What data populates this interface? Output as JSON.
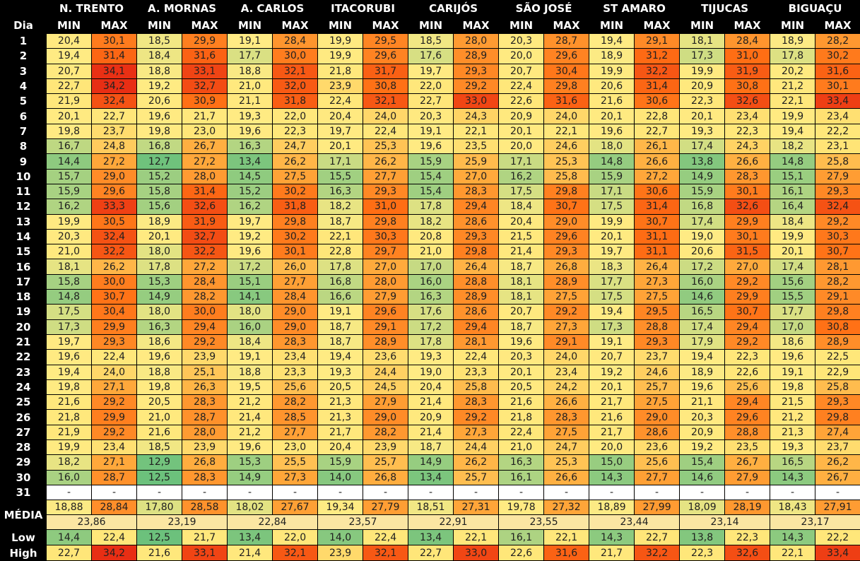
{
  "header": {
    "dia_label": "Dia",
    "min_label": "MIN",
    "max_label": "MAX"
  },
  "stations": [
    "N. TRENTO",
    "A. MORNAS",
    "A. CARLOS",
    "ITACORUBI",
    "CARIJÓS",
    "SÃO JOSÉ",
    "ST AMARO",
    "TIJUCAS",
    "BIGUAÇU"
  ],
  "days": [
    "1",
    "2",
    "3",
    "4",
    "5",
    "6",
    "7",
    "8",
    "9",
    "10",
    "11",
    "12",
    "13",
    "14",
    "15",
    "16",
    "17",
    "18",
    "19",
    "20",
    "21",
    "22",
    "23",
    "24",
    "25",
    "26",
    "27",
    "28",
    "29",
    "30",
    "31"
  ],
  "missing_mark": "-",
  "summary_labels": {
    "media": "MÉDIA",
    "low": "Low",
    "high": "High"
  },
  "chart_data": {
    "type": "table",
    "title": "",
    "columns": [
      "N. TRENTO",
      "A. MORNAS",
      "A. CARLOS",
      "ITACORUBI",
      "CARIJÓS",
      "SÃO JOSÉ",
      "ST AMARO",
      "TIJUCAS",
      "BIGUAÇU"
    ],
    "subcolumns": [
      "MIN",
      "MAX"
    ],
    "rows": [
      [
        "20,4",
        "30,1",
        "18,5",
        "29,9",
        "19,1",
        "28,4",
        "19,9",
        "29,5",
        "18,5",
        "28,0",
        "20,3",
        "28,7",
        "19,4",
        "29,1",
        "18,1",
        "28,4",
        "18,9",
        "28,2"
      ],
      [
        "19,4",
        "31,4",
        "18,4",
        "31,6",
        "17,7",
        "30,0",
        "19,9",
        "29,6",
        "17,6",
        "28,9",
        "20,0",
        "29,6",
        "18,9",
        "31,2",
        "17,3",
        "31,0",
        "17,8",
        "30,2"
      ],
      [
        "20,7",
        "34,1",
        "18,8",
        "33,1",
        "18,8",
        "32,1",
        "21,8",
        "31,7",
        "19,7",
        "29,3",
        "20,7",
        "30,4",
        "19,9",
        "32,2",
        "19,9",
        "31,9",
        "20,2",
        "31,6"
      ],
      [
        "22,7",
        "34,2",
        "19,2",
        "32,7",
        "21,0",
        "32,0",
        "23,9",
        "30,8",
        "22,0",
        "29,2",
        "22,4",
        "29,8",
        "20,6",
        "31,4",
        "20,9",
        "30,8",
        "21,2",
        "30,1"
      ],
      [
        "21,9",
        "32,4",
        "20,6",
        "30,9",
        "21,1",
        "31,8",
        "22,4",
        "32,1",
        "22,7",
        "33,0",
        "22,6",
        "31,6",
        "21,6",
        "30,6",
        "22,3",
        "32,6",
        "22,1",
        "33,4"
      ],
      [
        "20,1",
        "22,7",
        "19,6",
        "21,7",
        "19,3",
        "22,0",
        "20,4",
        "24,0",
        "20,3",
        "24,3",
        "20,9",
        "24,0",
        "20,1",
        "22,8",
        "20,1",
        "23,4",
        "19,9",
        "23,4"
      ],
      [
        "19,8",
        "23,7",
        "19,8",
        "23,0",
        "19,6",
        "22,3",
        "19,7",
        "22,4",
        "19,1",
        "22,1",
        "20,1",
        "22,1",
        "19,6",
        "22,7",
        "19,3",
        "22,3",
        "19,4",
        "22,2"
      ],
      [
        "16,7",
        "24,8",
        "16,8",
        "26,7",
        "16,3",
        "24,7",
        "20,1",
        "25,3",
        "19,6",
        "23,5",
        "20,0",
        "24,6",
        "18,0",
        "26,1",
        "17,4",
        "24,3",
        "18,2",
        "23,1"
      ],
      [
        "14,4",
        "27,2",
        "12,7",
        "27,2",
        "13,4",
        "26,2",
        "17,1",
        "26,2",
        "15,9",
        "25,9",
        "17,1",
        "25,3",
        "14,8",
        "26,6",
        "13,8",
        "26,6",
        "14,8",
        "25,8"
      ],
      [
        "15,7",
        "29,0",
        "15,2",
        "28,0",
        "14,5",
        "27,5",
        "15,5",
        "27,7",
        "15,4",
        "27,0",
        "16,2",
        "25,8",
        "15,9",
        "27,2",
        "14,9",
        "28,3",
        "15,1",
        "27,9"
      ],
      [
        "15,9",
        "29,6",
        "15,8",
        "31,4",
        "15,2",
        "30,2",
        "16,3",
        "29,3",
        "15,4",
        "28,3",
        "17,5",
        "29,8",
        "17,1",
        "30,6",
        "15,9",
        "30,1",
        "16,1",
        "29,3"
      ],
      [
        "16,2",
        "33,3",
        "15,6",
        "32,6",
        "16,2",
        "31,8",
        "18,2",
        "31,0",
        "17,8",
        "29,4",
        "18,4",
        "30,7",
        "17,5",
        "31,4",
        "16,8",
        "32,6",
        "16,4",
        "32,4"
      ],
      [
        "19,9",
        "30,5",
        "18,9",
        "31,9",
        "19,7",
        "29,8",
        "18,7",
        "29,8",
        "18,2",
        "28,6",
        "20,4",
        "29,0",
        "19,9",
        "30,7",
        "17,4",
        "29,9",
        "18,4",
        "29,2"
      ],
      [
        "20,3",
        "32,4",
        "20,1",
        "32,7",
        "19,2",
        "30,2",
        "22,1",
        "30,3",
        "20,8",
        "29,3",
        "21,5",
        "29,6",
        "20,1",
        "31,1",
        "19,0",
        "30,1",
        "19,9",
        "30,3"
      ],
      [
        "21,0",
        "32,2",
        "18,0",
        "32,2",
        "19,6",
        "30,1",
        "22,8",
        "29,7",
        "21,0",
        "29,8",
        "21,4",
        "29,3",
        "19,7",
        "31,1",
        "20,6",
        "31,5",
        "20,1",
        "30,7"
      ],
      [
        "18,1",
        "26,2",
        "17,8",
        "27,2",
        "17,2",
        "26,0",
        "17,8",
        "27,0",
        "17,0",
        "26,4",
        "18,7",
        "26,8",
        "18,3",
        "26,4",
        "17,2",
        "27,0",
        "17,4",
        "28,1"
      ],
      [
        "15,8",
        "30,0",
        "15,3",
        "28,4",
        "15,1",
        "27,7",
        "16,8",
        "28,0",
        "16,0",
        "28,8",
        "18,1",
        "28,9",
        "17,7",
        "27,3",
        "16,0",
        "29,2",
        "15,6",
        "28,2"
      ],
      [
        "14,8",
        "30,7",
        "14,9",
        "28,2",
        "14,1",
        "28,4",
        "16,6",
        "27,9",
        "16,3",
        "28,9",
        "18,1",
        "27,5",
        "17,5",
        "27,5",
        "14,6",
        "29,9",
        "15,5",
        "29,1"
      ],
      [
        "17,5",
        "30,4",
        "18,0",
        "30,0",
        "18,0",
        "29,0",
        "19,1",
        "29,6",
        "17,6",
        "28,6",
        "20,7",
        "29,2",
        "19,4",
        "29,5",
        "16,5",
        "30,7",
        "17,7",
        "29,8"
      ],
      [
        "17,3",
        "29,9",
        "16,3",
        "29,4",
        "16,0",
        "29,0",
        "18,7",
        "29,1",
        "17,2",
        "29,4",
        "18,7",
        "27,3",
        "17,3",
        "28,8",
        "17,4",
        "29,4",
        "17,0",
        "30,8"
      ],
      [
        "19,7",
        "29,3",
        "18,6",
        "29,2",
        "18,4",
        "28,3",
        "18,7",
        "28,9",
        "17,8",
        "28,1",
        "19,6",
        "29,1",
        "19,1",
        "29,3",
        "17,9",
        "29,2",
        "18,6",
        "28,9"
      ],
      [
        "19,6",
        "22,4",
        "19,6",
        "23,9",
        "19,1",
        "23,4",
        "19,4",
        "23,6",
        "19,3",
        "22,4",
        "20,3",
        "24,0",
        "20,7",
        "23,7",
        "19,4",
        "22,3",
        "19,6",
        "22,5"
      ],
      [
        "19,4",
        "24,0",
        "18,8",
        "25,1",
        "18,8",
        "23,3",
        "19,3",
        "24,4",
        "19,0",
        "23,3",
        "20,1",
        "23,4",
        "19,2",
        "24,6",
        "18,9",
        "22,6",
        "19,1",
        "22,9"
      ],
      [
        "19,8",
        "27,1",
        "19,8",
        "26,3",
        "19,5",
        "25,6",
        "20,5",
        "24,5",
        "20,4",
        "25,8",
        "20,5",
        "24,2",
        "20,1",
        "25,7",
        "19,6",
        "25,6",
        "19,8",
        "25,8"
      ],
      [
        "21,6",
        "29,2",
        "20,5",
        "28,3",
        "21,2",
        "28,2",
        "21,3",
        "27,9",
        "21,4",
        "28,3",
        "21,6",
        "26,6",
        "21,7",
        "27,5",
        "21,1",
        "29,4",
        "21,5",
        "29,3"
      ],
      [
        "21,8",
        "29,9",
        "21,0",
        "28,7",
        "21,4",
        "28,5",
        "21,3",
        "29,0",
        "20,9",
        "29,2",
        "21,8",
        "28,3",
        "21,6",
        "29,0",
        "20,3",
        "29,6",
        "21,2",
        "29,8"
      ],
      [
        "21,9",
        "29,2",
        "21,6",
        "28,0",
        "21,2",
        "27,7",
        "21,7",
        "28,2",
        "21,4",
        "27,3",
        "22,4",
        "27,5",
        "21,7",
        "28,6",
        "20,9",
        "28,8",
        "21,3",
        "27,4"
      ],
      [
        "19,9",
        "23,4",
        "18,5",
        "23,9",
        "19,6",
        "23,0",
        "20,4",
        "23,9",
        "18,7",
        "24,4",
        "21,0",
        "24,7",
        "20,0",
        "23,6",
        "19,2",
        "23,5",
        "19,3",
        "23,7"
      ],
      [
        "18,2",
        "27,1",
        "12,9",
        "26,8",
        "15,3",
        "25,5",
        "15,9",
        "25,7",
        "14,9",
        "26,2",
        "16,3",
        "25,3",
        "15,0",
        "25,6",
        "15,4",
        "26,7",
        "16,5",
        "26,2"
      ],
      [
        "16,0",
        "28,7",
        "12,5",
        "28,3",
        "14,9",
        "27,3",
        "14,0",
        "26,8",
        "13,4",
        "25,7",
        "16,1",
        "26,6",
        "14,3",
        "27,7",
        "14,6",
        "27,9",
        "14,3",
        "26,7"
      ]
    ],
    "media": [
      "18,88",
      "28,84",
      "17,80",
      "28,58",
      "18,02",
      "27,67",
      "19,34",
      "27,79",
      "18,51",
      "27,31",
      "19,78",
      "27,32",
      "18,89",
      "27,99",
      "18,09",
      "28,19",
      "18,43",
      "27,91"
    ],
    "media_overall": [
      "23,86",
      "23,19",
      "22,84",
      "23,57",
      "22,91",
      "23,55",
      "23,44",
      "23,14",
      "23,17"
    ],
    "low": [
      "14,4",
      "22,4",
      "12,5",
      "21,7",
      "13,4",
      "22,0",
      "14,0",
      "22,4",
      "13,4",
      "22,1",
      "16,1",
      "22,1",
      "14,3",
      "22,7",
      "13,8",
      "22,3",
      "14,3",
      "22,2"
    ],
    "high": [
      "22,7",
      "34,2",
      "21,6",
      "33,1",
      "21,4",
      "32,1",
      "23,9",
      "32,1",
      "22,7",
      "33,0",
      "22,6",
      "31,6",
      "21,7",
      "32,2",
      "22,3",
      "32,6",
      "22,1",
      "33,4"
    ],
    "color_scale": {
      "low": "#63be7b",
      "mid": "#ffeb84",
      "high": "#f8696b",
      "hot": "#ff5a00"
    }
  }
}
